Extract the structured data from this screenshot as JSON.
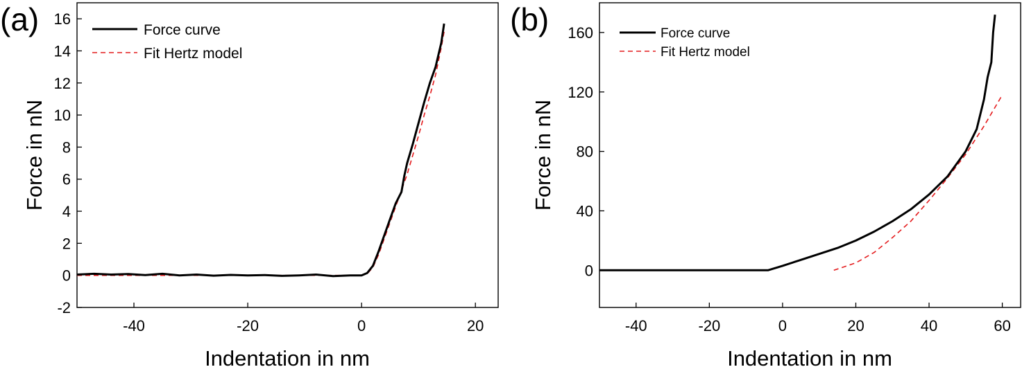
{
  "chart_data": [
    {
      "panel": "(a)",
      "type": "line",
      "xlabel": "Indentation in nm",
      "ylabel": "Force in nN",
      "xlim": [
        -50,
        24
      ],
      "ylim": [
        -2,
        17
      ],
      "xticks": [
        -40,
        -20,
        0,
        20
      ],
      "yticks": [
        -2,
        0,
        2,
        4,
        6,
        8,
        10,
        12,
        14,
        16
      ],
      "legend": "top-left",
      "series": [
        {
          "name": "Force curve",
          "style": "solid",
          "color": "#000000",
          "x": [
            -50,
            -47,
            -44,
            -41,
            -38,
            -35,
            -32,
            -29,
            -26,
            -23,
            -20,
            -17,
            -14,
            -11,
            -8,
            -5,
            -2,
            0,
            1,
            2,
            3,
            4,
            5,
            6,
            7,
            7.5,
            8,
            9,
            10,
            11,
            12,
            13,
            14,
            14.5
          ],
          "y": [
            0.05,
            0.1,
            0.05,
            0.08,
            0.02,
            0.1,
            0.0,
            0.05,
            -0.02,
            0.03,
            0.0,
            0.02,
            -0.03,
            0.0,
            0.05,
            -0.05,
            0.0,
            0.0,
            0.15,
            0.6,
            1.5,
            2.5,
            3.5,
            4.5,
            5.2,
            6.2,
            7.0,
            8.2,
            9.5,
            10.8,
            12.0,
            13.0,
            14.5,
            15.7
          ]
        },
        {
          "name": "Fit Hertz model",
          "style": "dashed",
          "color": "#e41a1c",
          "x": [
            -50,
            -40,
            -30,
            -20,
            -10,
            0,
            1,
            2,
            3,
            4,
            5,
            6,
            7,
            8,
            9,
            10,
            11,
            12,
            13,
            14,
            14.5
          ],
          "y": [
            0,
            0,
            0,
            0,
            0,
            0,
            0.1,
            0.5,
            1.3,
            2.3,
            3.3,
            4.3,
            5.3,
            6.3,
            7.5,
            8.7,
            10.0,
            11.2,
            12.5,
            14.2,
            15.2
          ]
        }
      ]
    },
    {
      "panel": "(b)",
      "type": "line",
      "xlabel": "Indentation in nm",
      "ylabel": "Force in nN",
      "xlim": [
        -50,
        65
      ],
      "ylim": [
        -25,
        180
      ],
      "xticks": [
        -40,
        -20,
        0,
        20,
        40,
        60
      ],
      "yticks": [
        0,
        40,
        80,
        120,
        160
      ],
      "legend": "top-left",
      "series": [
        {
          "name": "Force curve",
          "style": "solid",
          "color": "#000000",
          "x": [
            -50,
            -40,
            -30,
            -20,
            -10,
            -4,
            0,
            5,
            10,
            15,
            20,
            25,
            30,
            35,
            40,
            45,
            50,
            53,
            55,
            56,
            57,
            57.5,
            58
          ],
          "y": [
            0,
            0,
            0,
            0,
            0,
            0,
            3,
            7,
            11,
            15,
            20,
            26,
            33,
            41,
            51,
            63,
            80,
            95,
            115,
            130,
            140,
            160,
            172
          ]
        },
        {
          "name": "Fit Hertz model",
          "style": "dashed",
          "color": "#e41a1c",
          "x": [
            14,
            20,
            25,
            30,
            35,
            40,
            45,
            50,
            55,
            60
          ],
          "y": [
            0,
            5,
            12,
            22,
            33,
            47,
            62,
            78,
            97,
            118
          ]
        }
      ]
    }
  ]
}
